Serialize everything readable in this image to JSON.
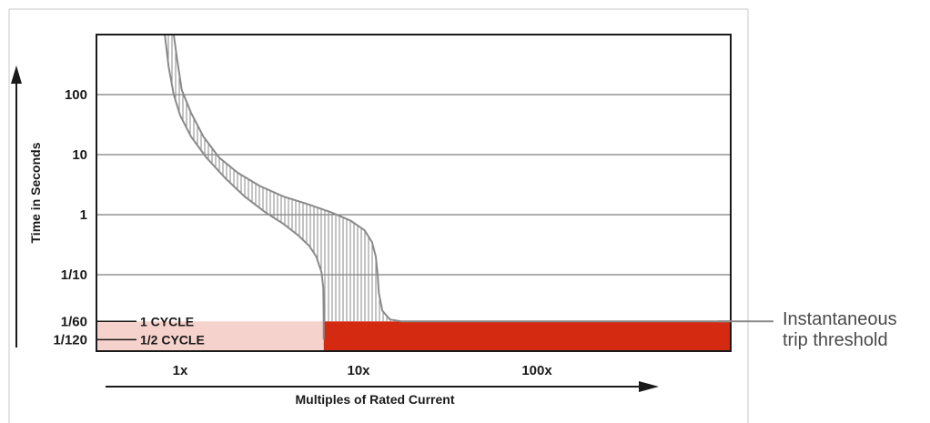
{
  "chart_data": {
    "type": "area",
    "title": "",
    "xlabel": "Multiples of Rated Current",
    "ylabel": "Time in Seconds",
    "x_scale": "log",
    "y_scale": "log",
    "grid": {
      "horizontal": true,
      "vertical": false
    },
    "x_ticks": [
      {
        "label": "1x",
        "value": 1
      },
      {
        "label": "10x",
        "value": 10
      },
      {
        "label": "100x",
        "value": 100
      }
    ],
    "y_ticks": [
      {
        "label": "100",
        "value": 100
      },
      {
        "label": "10",
        "value": 10
      },
      {
        "label": "1",
        "value": 1
      },
      {
        "label": "1/10",
        "value": 0.1
      },
      {
        "label": "1/60",
        "value": 0.0167
      },
      {
        "label": "1/120",
        "value": 0.0083
      }
    ],
    "cycle_markers": [
      {
        "label": "1 CYCLE",
        "value": 0.0167
      },
      {
        "label": "1/2 CYCLE",
        "value": 0.0083
      }
    ],
    "series": [
      {
        "role": "minimum",
        "x": [
          0.82,
          0.86,
          0.92,
          1.0,
          1.15,
          1.4,
          1.8,
          2.3,
          3.0,
          3.8,
          4.6,
          5.3,
          5.8,
          6.2,
          6.35,
          6.38,
          6.38
        ],
        "y": [
          1000,
          300,
          100,
          45,
          20,
          9,
          4,
          2,
          1.1,
          0.7,
          0.45,
          0.3,
          0.2,
          0.11,
          0.06,
          0.02,
          0.0083
        ]
      },
      {
        "role": "maximum",
        "x": [
          0.92,
          0.96,
          1.02,
          1.15,
          1.35,
          1.65,
          2.1,
          2.8,
          3.8,
          5.2,
          7.0,
          9.0,
          10.8,
          11.9,
          12.5,
          12.8,
          13.0,
          13.6,
          15.0,
          17.5
        ],
        "y": [
          1000,
          400,
          120,
          50,
          20,
          9,
          5,
          3,
          2,
          1.5,
          1.1,
          0.8,
          0.55,
          0.35,
          0.2,
          0.1,
          0.05,
          0.025,
          0.018,
          0.0167
        ]
      }
    ],
    "threshold_value": 0.0167,
    "instantaneous_start_x": 6.38,
    "colors": {
      "band_outline": "#8a8a8a",
      "hatch": "#8a8a8a",
      "pink_zone": "#f6d2cc",
      "red_zone": "#d42a12",
      "grid": "#5c5c5c",
      "frame": "#1a1a1a",
      "text": "#1a1a1a",
      "callout_text": "#4a4a4a"
    }
  },
  "annotation": {
    "callout_line1": "Instantaneous",
    "callout_line2": "trip threshold"
  }
}
